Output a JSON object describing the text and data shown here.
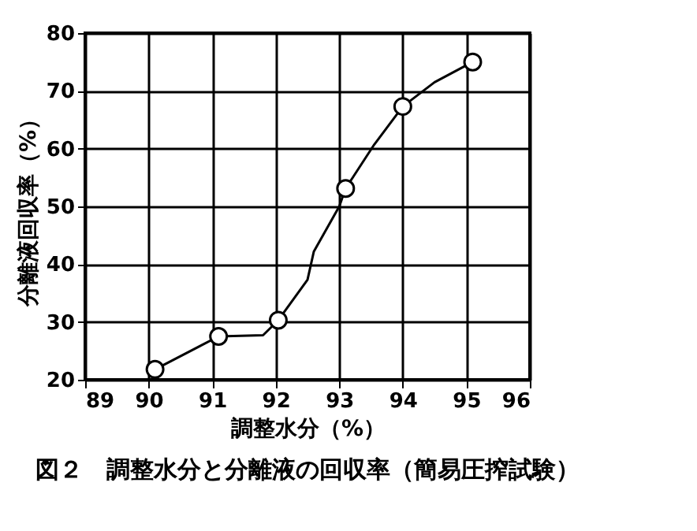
{
  "chart_data": {
    "type": "line",
    "title": "図２　調整水分と分離液の回収率（簡易圧搾試験）",
    "xlabel": "調整水分（%）",
    "ylabel": "分離液回収率（%）",
    "series": [
      {
        "color": "#000000",
        "marker": "none",
        "x": [
          90.1,
          91.1,
          91.8,
          92.04,
          92.5,
          92.6,
          93.0,
          93.1,
          93.55,
          94.0,
          94.5,
          95.1
        ],
        "values": [
          21.8,
          27.5,
          27.7,
          30.3,
          37.3,
          42.2,
          50.0,
          53.1,
          60.7,
          67.3,
          71.5,
          75.0
        ]
      },
      {
        "type": "scatter",
        "color": "#000000",
        "marker": "circle",
        "x": [
          90.1,
          91.1,
          92.04,
          93.1,
          94.0,
          95.1
        ],
        "values": [
          21.8,
          27.5,
          30.3,
          53.1,
          67.3,
          75.0
        ]
      }
    ],
    "xlim": [
      89,
      96
    ],
    "xticks": [
      89,
      90,
      91,
      92,
      93,
      94,
      95,
      96
    ],
    "ylim": [
      20,
      80
    ],
    "yticks": [
      20,
      30,
      40,
      50,
      60,
      70,
      80
    ],
    "grid": true
  }
}
